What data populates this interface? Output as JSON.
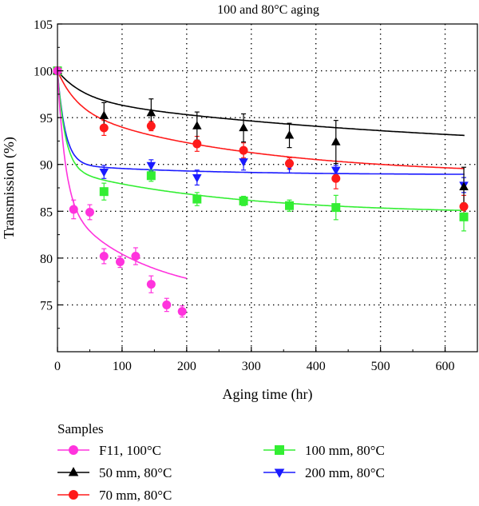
{
  "chart_data": {
    "type": "scatter",
    "title": "100 and 80°C aging",
    "xlabel": "Aging time (hr)",
    "ylabel": "Transmission (%)",
    "xlim": [
      0,
      650
    ],
    "ylim": [
      70,
      105
    ],
    "xticks": [
      0,
      100,
      200,
      300,
      400,
      500,
      600
    ],
    "yticks": [
      75,
      80,
      85,
      90,
      95,
      100,
      105
    ],
    "grid": "dotted",
    "legend": {
      "title": "Samples",
      "placement": "bottom"
    },
    "series": [
      {
        "name": "F11, 100°C",
        "color": "#ff33dd",
        "marker": "circle",
        "points": [
          {
            "x": 0,
            "y": 100,
            "err": 0.2
          },
          {
            "x": 25,
            "y": 85.2,
            "err": 1.0
          },
          {
            "x": 50,
            "y": 84.9,
            "err": 0.8
          },
          {
            "x": 72,
            "y": 80.2,
            "err": 0.8
          },
          {
            "x": 97,
            "y": 79.6,
            "err": 0.6
          },
          {
            "x": 121,
            "y": 80.2,
            "err": 0.9
          },
          {
            "x": 145,
            "y": 77.2,
            "err": 0.9
          },
          {
            "x": 169,
            "y": 75.0,
            "err": 0.7
          },
          {
            "x": 193,
            "y": 74.3,
            "err": 0.6
          }
        ],
        "fit": {
          "model": "biexp",
          "A": 14.0,
          "t1": 12,
          "B": 10.4,
          "t2": 130,
          "xmax": 200
        }
      },
      {
        "name": "50 mm, 80°C",
        "color": "#000000",
        "marker": "triangle-up",
        "points": [
          {
            "x": 0,
            "y": 100,
            "err": 0.2
          },
          {
            "x": 72,
            "y": 95.2,
            "err": 1.4
          },
          {
            "x": 145,
            "y": 95.5,
            "err": 1.5
          },
          {
            "x": 216,
            "y": 94.1,
            "err": 1.5
          },
          {
            "x": 288,
            "y": 93.9,
            "err": 1.5
          },
          {
            "x": 359,
            "y": 93.1,
            "err": 1.3
          },
          {
            "x": 431,
            "y": 92.4,
            "err": 2.3
          },
          {
            "x": 629,
            "y": 87.6,
            "err": 2.1
          }
        ],
        "fit": {
          "model": "biexp",
          "A": 3.0,
          "t1": 40,
          "B": 6.0,
          "t2": 600,
          "xmax": 630
        }
      },
      {
        "name": "70 mm, 80°C",
        "color": "#ff1a1a",
        "marker": "circle",
        "points": [
          {
            "x": 0,
            "y": 100,
            "err": 0.2
          },
          {
            "x": 72,
            "y": 93.9,
            "err": 0.8
          },
          {
            "x": 145,
            "y": 94.1,
            "err": 0.5
          },
          {
            "x": 216,
            "y": 92.2,
            "err": 0.8
          },
          {
            "x": 288,
            "y": 91.5,
            "err": 0.8
          },
          {
            "x": 359,
            "y": 90.1,
            "err": 0.6
          },
          {
            "x": 431,
            "y": 88.5,
            "err": 1.1
          },
          {
            "x": 629,
            "y": 85.5,
            "err": 1.2
          }
        ],
        "fit": {
          "model": "biexp",
          "A": 4.0,
          "t1": 30,
          "B": 7.2,
          "t2": 280,
          "xmax": 630
        }
      },
      {
        "name": "100 mm, 80°C",
        "color": "#33ee33",
        "marker": "square",
        "points": [
          {
            "x": 0,
            "y": 100,
            "err": 0.2
          },
          {
            "x": 72,
            "y": 87.1,
            "err": 0.9
          },
          {
            "x": 145,
            "y": 88.8,
            "err": 0.6
          },
          {
            "x": 216,
            "y": 86.3,
            "err": 0.7
          },
          {
            "x": 288,
            "y": 86.1,
            "err": 0.5
          },
          {
            "x": 359,
            "y": 85.6,
            "err": 0.6
          },
          {
            "x": 431,
            "y": 85.4,
            "err": 1.3
          },
          {
            "x": 629,
            "y": 84.4,
            "err": 1.5
          }
        ],
        "fit": {
          "model": "biexp",
          "A": 10.5,
          "t1": 12,
          "B": 4.8,
          "t2": 250,
          "xmax": 630
        }
      },
      {
        "name": "200 mm, 80°C",
        "color": "#1a1aff",
        "marker": "triangle-down",
        "points": [
          {
            "x": 0,
            "y": 100,
            "err": 0.2
          },
          {
            "x": 72,
            "y": 89.2,
            "err": 0.7
          },
          {
            "x": 145,
            "y": 89.9,
            "err": 0.6
          },
          {
            "x": 216,
            "y": 88.6,
            "err": 0.8
          },
          {
            "x": 288,
            "y": 90.3,
            "err": 0.9
          },
          {
            "x": 359,
            "y": 89.8,
            "err": 0.7
          },
          {
            "x": 431,
            "y": 89.4,
            "err": 0.5
          },
          {
            "x": 629,
            "y": 87.8,
            "err": 0.8
          }
        ],
        "fit": {
          "model": "biexp",
          "A": 10.0,
          "t1": 12,
          "B": 1.1,
          "t2": 200,
          "xmax": 630
        }
      }
    ]
  }
}
